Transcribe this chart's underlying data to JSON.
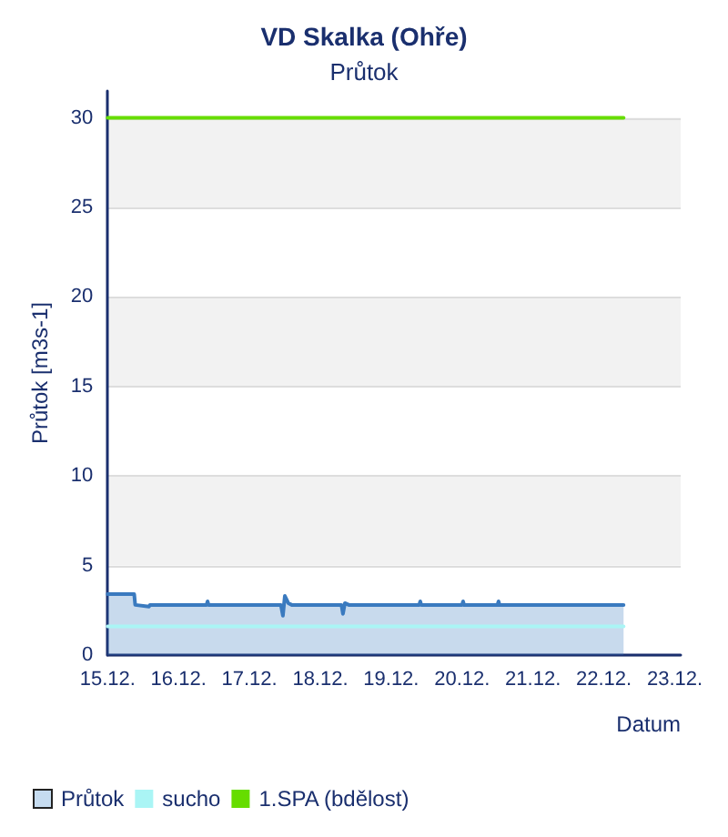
{
  "chart_data": {
    "type": "line",
    "title": "VD Skalka (Ohře)",
    "subtitle": "Průtok",
    "xlabel": "Datum",
    "ylabel": "Průtok [m3s-1]",
    "xlim": [
      "--12-15",
      "--12-23T02:00"
    ],
    "xticks": [
      {
        "value": "--12-15",
        "label": "15.12."
      },
      {
        "value": "--12-16",
        "label": "16.12."
      },
      {
        "value": "--12-17",
        "label": "17.12."
      },
      {
        "value": "--12-18",
        "label": "18.12."
      },
      {
        "value": "--12-19",
        "label": "19.12."
      },
      {
        "value": "--12-20",
        "label": "20.12."
      },
      {
        "value": "--12-21",
        "label": "21.12."
      },
      {
        "value": "--12-22",
        "label": "22.12."
      },
      {
        "value": "--12-23",
        "label": "23.12."
      }
    ],
    "ylim": [
      0,
      31.5
    ],
    "yticks": [
      0,
      5,
      10,
      15,
      20,
      25,
      30
    ],
    "series": [
      {
        "name": "Průtok",
        "type": "area",
        "color": "#3a7abf",
        "x": [
          "--12-15T00:00",
          "--12-15T09:00",
          "--12-15T09:20",
          "--12-15T14:00",
          "--12-15T14:20",
          "--12-16T09:30",
          "--12-16T09:50",
          "--12-16T10:10",
          "--12-17T10:40",
          "--12-17T11:20",
          "--12-17T12:00",
          "--12-17T13:10",
          "--12-17T14:20",
          "--12-18T07:10",
          "--12-18T07:40",
          "--12-18T08:20",
          "--12-18T09:40",
          "--12-19T09:30",
          "--12-19T09:50",
          "--12-19T10:10",
          "--12-20T00:00",
          "--12-20T00:20",
          "--12-20T00:40",
          "--12-20T12:00",
          "--12-20T12:20",
          "--12-20T12:40",
          "--12-22T06:40"
        ],
        "values": [
          3.4,
          3.4,
          2.8,
          2.7,
          2.8,
          2.8,
          3.0,
          2.8,
          2.8,
          2.2,
          3.3,
          2.9,
          2.8,
          2.8,
          2.3,
          2.9,
          2.8,
          2.8,
          3.0,
          2.8,
          2.8,
          3.0,
          2.8,
          2.8,
          3.0,
          2.8,
          2.8
        ]
      },
      {
        "name": "sucho",
        "color": "#aaf5f5",
        "x": [
          "--12-15T00:00",
          "--12-22T06:40"
        ],
        "values": [
          1.6,
          1.6
        ]
      },
      {
        "name": "1.SPA (bdělost)",
        "color": "#66dd00",
        "x": [
          "--12-15T00:00",
          "--12-22T06:40"
        ],
        "values": [
          30,
          30
        ]
      }
    ],
    "grid": "y",
    "legend": "bottom left",
    "marker": "none",
    "line_style": "solid"
  }
}
